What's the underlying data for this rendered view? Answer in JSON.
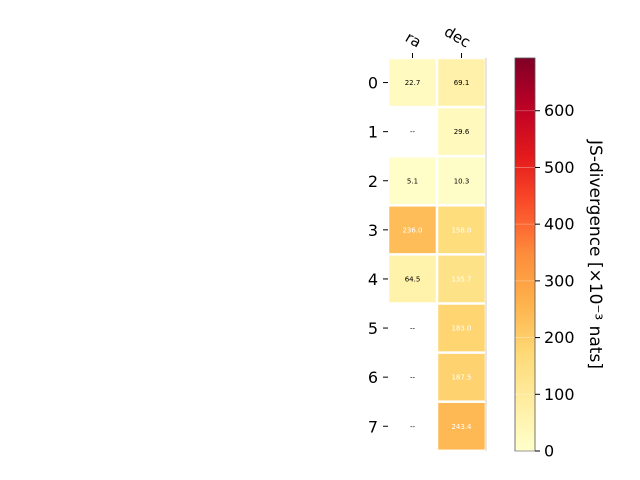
{
  "chart_data": {
    "type": "heatmap",
    "columns": [
      "ra",
      "dec"
    ],
    "rows": [
      "0",
      "1",
      "2",
      "3",
      "4",
      "5",
      "6",
      "7"
    ],
    "values": [
      [
        22.7,
        69.1
      ],
      [
        null,
        29.6
      ],
      [
        5.1,
        10.3
      ],
      [
        236.0,
        158.0
      ],
      [
        64.5,
        135.7
      ],
      [
        null,
        183.0
      ],
      [
        null,
        187.5
      ],
      [
        null,
        243.4
      ]
    ],
    "cell_labels": [
      [
        "22.7",
        "69.1"
      ],
      [
        "--",
        "29.6"
      ],
      [
        "5.1",
        "10.3"
      ],
      [
        "236.0",
        "158.0"
      ],
      [
        "64.5",
        "135.7"
      ],
      [
        "--",
        "183.0"
      ],
      [
        "--",
        "187.5"
      ],
      [
        "--",
        "243.4"
      ]
    ],
    "colorbar": {
      "label": "JS-divergence [×10⁻³ nats]",
      "ticks": [
        "0",
        "100",
        "200",
        "300",
        "400",
        "500",
        "600"
      ],
      "range": [
        0,
        693
      ],
      "colormap": "YlOrRd"
    },
    "missing_label": "--"
  }
}
